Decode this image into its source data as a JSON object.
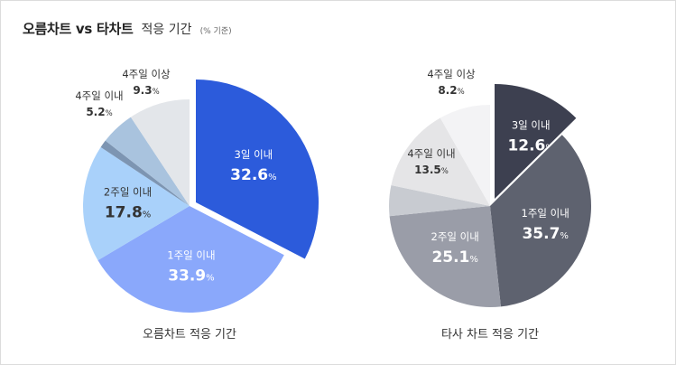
{
  "title": {
    "main": "오름차트 vs 타차트",
    "sub": "적응 기간",
    "note": "(% 기준)"
  },
  "chart_data": [
    {
      "type": "pie",
      "caption": "오름차트 적응 기간",
      "slices": [
        {
          "label": "3일 이내",
          "value": 32.6,
          "pct_text": "32.6",
          "color": "#2c5bdb",
          "text_color": "#ffffff",
          "exploded": true,
          "show_label": true,
          "label_outside": false
        },
        {
          "label": "1주일 이내",
          "value": 33.9,
          "pct_text": "33.9",
          "color": "#8aa8fb",
          "text_color": "#ffffff",
          "exploded": false,
          "show_label": true,
          "label_outside": false
        },
        {
          "label": "2주일 이내",
          "value": 17.8,
          "pct_text": "17.8",
          "color": "#a9d1fa",
          "text_color": "#333333",
          "exploded": false,
          "show_label": true,
          "label_outside": false
        },
        {
          "label": "",
          "value": 1.2,
          "pct_text": "",
          "color": "#7d95b2",
          "text_color": "#333333",
          "exploded": false,
          "show_label": false,
          "label_outside": false
        },
        {
          "label": "4주일 이내",
          "value": 5.2,
          "pct_text": "5.2",
          "color": "#a9c3de",
          "text_color": "#333333",
          "exploded": false,
          "show_label": true,
          "label_outside": true
        },
        {
          "label": "4주일 이상",
          "value": 9.3,
          "pct_text": "9.3",
          "color": "#e3e6ea",
          "text_color": "#333333",
          "exploded": false,
          "show_label": true,
          "label_outside": true
        }
      ]
    },
    {
      "type": "pie",
      "caption": "타사 차트 적응 기간",
      "slices": [
        {
          "label": "3일 이내",
          "value": 12.6,
          "pct_text": "12.6",
          "color": "#3d4050",
          "text_color": "#ffffff",
          "exploded": true,
          "show_label": true,
          "label_outside": false
        },
        {
          "label": "1주일 이내",
          "value": 35.7,
          "pct_text": "35.7",
          "color": "#5e626f",
          "text_color": "#ffffff",
          "exploded": false,
          "show_label": true,
          "label_outside": false
        },
        {
          "label": "2주일 이내",
          "value": 25.1,
          "pct_text": "25.1",
          "color": "#9a9da8",
          "text_color": "#ffffff",
          "exploded": false,
          "show_label": true,
          "label_outside": false
        },
        {
          "label": "",
          "value": 4.9,
          "pct_text": "",
          "color": "#c8cbd1",
          "text_color": "#333333",
          "exploded": false,
          "show_label": false,
          "label_outside": false
        },
        {
          "label": "4주일 이내",
          "value": 13.5,
          "pct_text": "13.5",
          "color": "#e5e5e7",
          "text_color": "#333333",
          "exploded": false,
          "show_label": true,
          "label_outside": false
        },
        {
          "label": "4주일 이상",
          "value": 8.2,
          "pct_text": "8.2",
          "color": "#f3f3f5",
          "text_color": "#333333",
          "exploded": false,
          "show_label": true,
          "label_outside": true
        }
      ]
    }
  ]
}
